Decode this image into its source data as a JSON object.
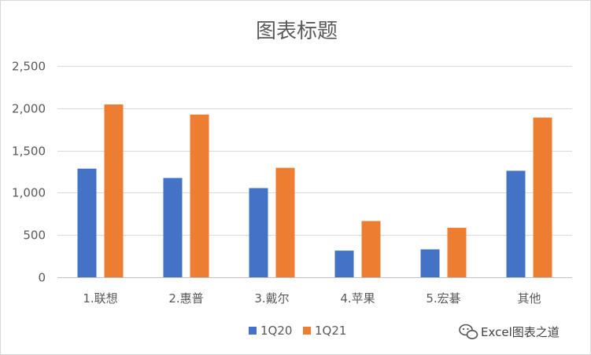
{
  "chart_data": {
    "type": "bar",
    "title": "图表标题",
    "categories": [
      "1.联想",
      "2.惠普",
      "3.戴尔",
      "4.苹果",
      "5.宏碁",
      "其他"
    ],
    "series": [
      {
        "name": "1Q20",
        "values": [
          1285,
          1175,
          1055,
          315,
          330,
          1260
        ],
        "color": "#4472C4"
      },
      {
        "name": "1Q21",
        "values": [
          2045,
          1925,
          1295,
          665,
          585,
          1890
        ],
        "color": "#ED7D31"
      }
    ],
    "ylim": [
      0,
      2500
    ],
    "yticks": [
      0,
      500,
      1000,
      1500,
      2000,
      2500
    ],
    "ytick_labels": [
      "0",
      "500",
      "1,000",
      "1,500",
      "2,000",
      "2,500"
    ],
    "grid": true,
    "legend_position": "bottom"
  },
  "watermark": {
    "text": "Excel图表之道",
    "icon": "wechat-icon"
  }
}
